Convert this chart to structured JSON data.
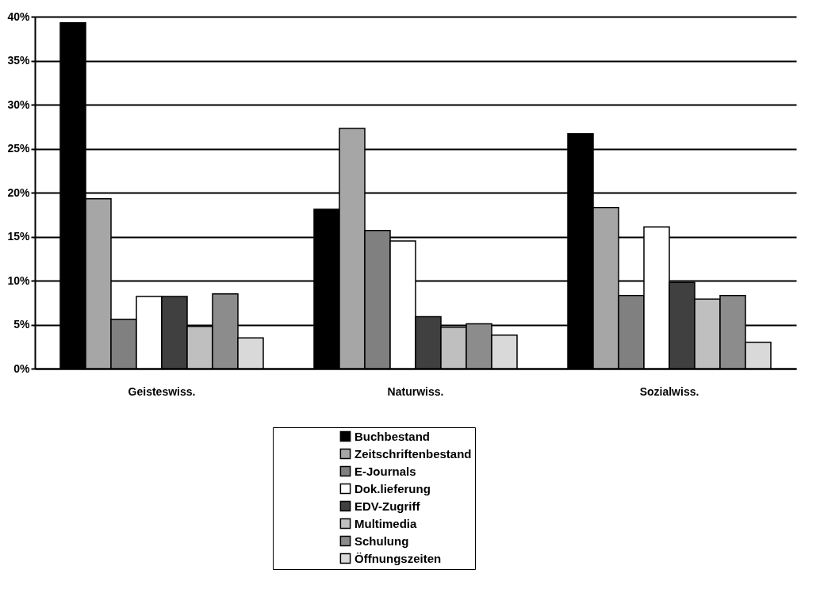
{
  "chart_data": {
    "type": "bar",
    "categories": [
      "Geisteswiss.",
      "Naturwiss.",
      "Sozialwiss."
    ],
    "series": [
      {
        "name": "Buchbestand",
        "color": "#000000",
        "values": [
          39.3,
          18.1,
          26.7
        ]
      },
      {
        "name": "Zeitschriftenbestand",
        "color": "#a6a6a6",
        "values": [
          19.3,
          27.3,
          18.3
        ]
      },
      {
        "name": "E-Journals",
        "color": "#808080",
        "values": [
          5.6,
          15.7,
          8.3
        ]
      },
      {
        "name": "Dok.lieferung",
        "color": "#ffffff",
        "values": [
          8.2,
          14.5,
          16.1
        ]
      },
      {
        "name": "EDV-Zugriff",
        "color": "#404040",
        "values": [
          8.2,
          5.9,
          9.8
        ]
      },
      {
        "name": "Multimedia",
        "color": "#bfbfbf",
        "values": [
          4.8,
          4.7,
          7.9
        ]
      },
      {
        "name": "Schulung",
        "color": "#8c8c8c",
        "values": [
          8.5,
          5.1,
          8.3
        ]
      },
      {
        "name": "Öffnungszeiten",
        "color": "#d9d9d9",
        "values": [
          3.5,
          3.8,
          3.0
        ]
      }
    ],
    "ylim": [
      0,
      40
    ],
    "yticks": [
      {
        "value": 0,
        "label": "0%"
      },
      {
        "value": 5,
        "label": "5%"
      },
      {
        "value": 10,
        "label": "10%"
      },
      {
        "value": 15,
        "label": "15%"
      },
      {
        "value": 20,
        "label": "20%"
      },
      {
        "value": 25,
        "label": "25%"
      },
      {
        "value": 30,
        "label": "30%"
      },
      {
        "value": 35,
        "label": "35%"
      },
      {
        "value": 40,
        "label": "40%"
      }
    ],
    "grid": "y",
    "legend": "bottom"
  }
}
